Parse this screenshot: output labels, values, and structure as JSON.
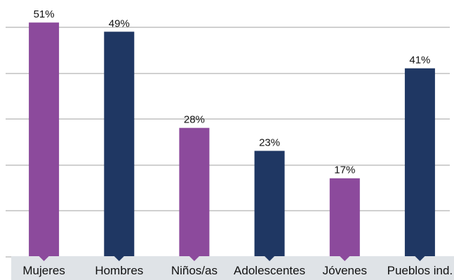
{
  "chart_data": {
    "type": "bar",
    "categories": [
      "Mujeres",
      "Hombres",
      "Niños/as",
      "Adolescentes",
      "Jóvenes",
      "Pueblos ind."
    ],
    "values": [
      51,
      49,
      28,
      23,
      17,
      41
    ],
    "value_labels": [
      "51%",
      "49%",
      "28%",
      "23%",
      "17%",
      "41%"
    ],
    "ylim": [
      0,
      55
    ],
    "grid": true,
    "legend": "none",
    "title": "",
    "xlabel": "",
    "ylabel": ""
  },
  "colors": {
    "bars": [
      "#8c4a9c",
      "#1f3763",
      "#8c4a9c",
      "#1f3763",
      "#8c4a9c",
      "#1f3763"
    ],
    "grid": "#b3b3b3",
    "category_band": "#dfe3e7",
    "text": "#111111"
  }
}
